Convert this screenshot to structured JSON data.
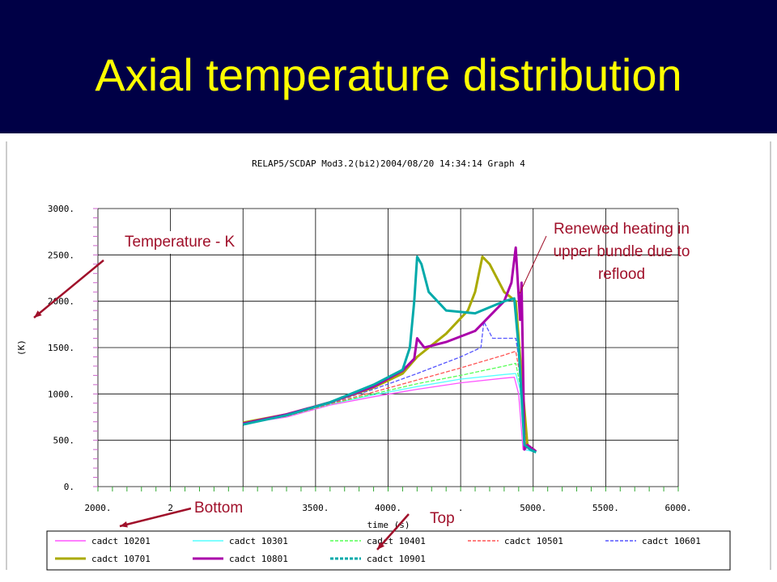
{
  "slide": {
    "title": "Axial temperature distribution"
  },
  "annotations": {
    "temperature": "Temperature - K",
    "renewed_heating": "Renewed heating in upper bundle due to reflood",
    "bottom": "Bottom",
    "top": "Top"
  },
  "colors": {
    "header_bg": "#000046",
    "title": "#ffff00",
    "annotation": "#a0102a"
  },
  "chart_data": {
    "type": "line",
    "title": "RELAP5/SCDAP Mod3.2(bi2)2004/08/20   14:34:14     Graph   4",
    "xlabel": "time (s)",
    "ylabel": "(K)",
    "xlim": [
      2000,
      6000
    ],
    "ylim": [
      0,
      3000
    ],
    "x_ticks": [
      "2000.",
      "2",
      "3500.",
      "4000.",
      ".",
      "5000.",
      "5500.",
      "6000."
    ],
    "y_ticks": [
      "0.",
      "500.",
      "1000.",
      "1500.",
      "2000.",
      "2500.",
      "3000."
    ],
    "grid": true,
    "legend_position": "bottom",
    "series": [
      {
        "name": "cadct 10201",
        "color": "#ff55ff",
        "x": [
          3000,
          3300,
          3600,
          3900,
          4200,
          4500,
          4800,
          4870,
          4900,
          4930,
          5020
        ],
        "y": [
          680,
          750,
          880,
          970,
          1050,
          1120,
          1170,
          1180,
          1000,
          400,
          380
        ]
      },
      {
        "name": "cadct 10301",
        "color": "#55ffff",
        "x": [
          3000,
          3300,
          3600,
          3900,
          4200,
          4500,
          4800,
          4880,
          4910,
          4940,
          5020
        ],
        "y": [
          680,
          760,
          890,
          990,
          1080,
          1160,
          1210,
          1220,
          1050,
          400,
          370
        ]
      },
      {
        "name": "cadct 10401",
        "color": "#55ff55",
        "x": [
          3000,
          3300,
          3600,
          3900,
          4200,
          4500,
          4800,
          4880,
          4910,
          4940,
          5020
        ],
        "y": [
          680,
          760,
          890,
          1000,
          1110,
          1200,
          1300,
          1330,
          1100,
          420,
          380
        ]
      },
      {
        "name": "cadct 10501",
        "color": "#ff5555",
        "x": [
          3000,
          3300,
          3600,
          3900,
          4200,
          4500,
          4800,
          4880,
          4910,
          4950,
          5020
        ],
        "y": [
          680,
          760,
          895,
          1020,
          1150,
          1280,
          1420,
          1460,
          1200,
          450,
          380
        ]
      },
      {
        "name": "cadct 10601",
        "color": "#5555ff",
        "x": [
          3000,
          3300,
          3600,
          3900,
          4200,
          4500,
          4640,
          4660,
          4720,
          4880,
          4920,
          4960,
          5020
        ],
        "y": [
          680,
          770,
          900,
          1050,
          1220,
          1400,
          1500,
          1780,
          1600,
          1600,
          1200,
          450,
          380
        ]
      },
      {
        "name": "cadct 10701",
        "color": "#aaaa00",
        "x": [
          3000,
          3300,
          3600,
          3900,
          4100,
          4200,
          4400,
          4550,
          4600,
          4650,
          4700,
          4800,
          4880,
          4920,
          4960,
          5020
        ],
        "y": [
          690,
          780,
          910,
          1070,
          1220,
          1400,
          1650,
          1900,
          2100,
          2480,
          2400,
          2100,
          2000,
          1200,
          450,
          380
        ]
      },
      {
        "name": "cadct 10801",
        "color": "#aa00aa",
        "x": [
          3000,
          3300,
          3600,
          3900,
          4100,
          4180,
          4200,
          4250,
          4400,
          4600,
          4800,
          4850,
          4880,
          4910,
          4920,
          4940,
          4960,
          5020
        ],
        "y": [
          680,
          780,
          910,
          1080,
          1250,
          1380,
          1600,
          1500,
          1560,
          1680,
          2000,
          2200,
          2580,
          1800,
          2200,
          400,
          450,
          380
        ]
      },
      {
        "name": "cadct 10901",
        "color": "#00aaaa",
        "x": [
          3000,
          3300,
          3600,
          3900,
          4100,
          4150,
          4180,
          4200,
          4230,
          4280,
          4400,
          4600,
          4800,
          4870,
          4900,
          4940,
          4980,
          5020
        ],
        "y": [
          670,
          770,
          910,
          1100,
          1260,
          1500,
          2000,
          2480,
          2400,
          2100,
          1900,
          1870,
          2000,
          2030,
          1500,
          450,
          400,
          370
        ]
      }
    ]
  }
}
